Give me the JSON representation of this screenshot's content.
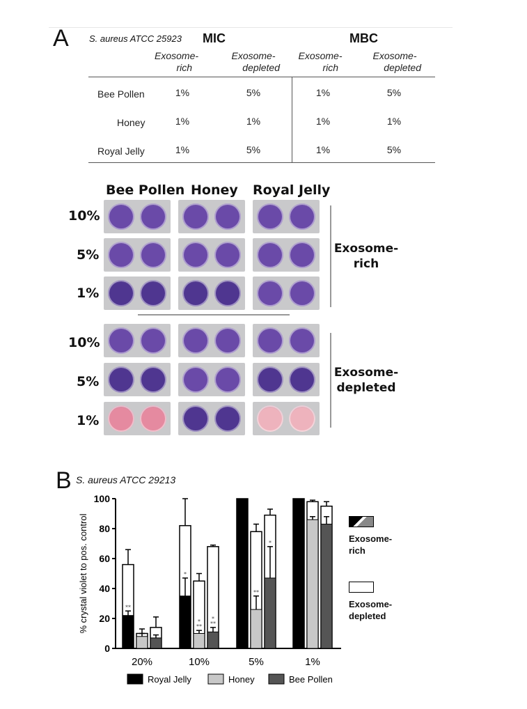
{
  "panel_a": {
    "letter": "A",
    "strain": "S. aureus ATCC 25923",
    "mic_label": "MIC",
    "mbc_label": "MBC",
    "col_headers": [
      {
        "line1": "Exosome-",
        "line2": "rich"
      },
      {
        "line1": "Exosome-",
        "line2": "depleted"
      },
      {
        "line1": "Exosome-",
        "line2": "rich"
      },
      {
        "line1": "Exosome-",
        "line2": "depleted"
      }
    ],
    "rows": [
      {
        "label": "Bee Pollen",
        "values": [
          "1%",
          "5%",
          "1%",
          "5%"
        ]
      },
      {
        "label": "Honey",
        "values": [
          "1%",
          "1%",
          "1%",
          "1%"
        ]
      },
      {
        "label": "Royal Jelly",
        "values": [
          "1%",
          "5%",
          "1%",
          "5%"
        ]
      }
    ],
    "plate_columns": [
      "Bee Pollen",
      "Honey",
      "Royal Jelly"
    ],
    "plate_rows": [
      "10%",
      "5%",
      "1%"
    ],
    "group_labels": [
      {
        "line1": "Exosome-",
        "line2": "rich"
      },
      {
        "line1": "Exosome-",
        "line2": "depleted"
      }
    ],
    "well_colors": {
      "purple": "#6a4aa8",
      "purple_dark": "#4f3690",
      "pink": "#e58aa0",
      "pink_light": "#eeb3bd"
    }
  },
  "panel_b": {
    "letter": "B",
    "strain": "S. aureus ATCC 29213",
    "chart_data": {
      "type": "bar",
      "ylabel": "% crystal violet  to pos. control",
      "ylim": [
        0,
        100
      ],
      "yticks": [
        "0",
        "20",
        "40",
        "60",
        "80",
        "100"
      ],
      "categories": [
        "20%",
        "10%",
        "5%",
        "1%"
      ],
      "series": [
        {
          "name": "Royal Jelly",
          "color": "#000000",
          "rich": [
            22,
            35,
            100,
            100
          ],
          "rich_err": [
            3,
            12,
            0,
            0
          ],
          "depleted": [
            56,
            82,
            100,
            100
          ],
          "depleted_err": [
            10,
            18,
            0,
            0
          ]
        },
        {
          "name": "Honey",
          "color": "#c8c8c8",
          "rich": [
            8,
            10,
            26,
            86
          ],
          "rich_err": [
            2,
            2,
            9,
            2
          ],
          "depleted": [
            10,
            45,
            78,
            98
          ],
          "depleted_err": [
            3,
            5,
            5,
            1
          ]
        },
        {
          "name": "Bee Pollen",
          "color": "#555555",
          "rich": [
            7,
            11,
            47,
            83
          ],
          "rich_err": [
            2,
            3,
            21,
            5
          ],
          "depleted": [
            14,
            68,
            89,
            95
          ],
          "depleted_err": [
            7,
            1,
            4,
            3
          ]
        }
      ],
      "significance": [
        {
          "category": "20%",
          "series": "Royal Jelly",
          "mark": "**"
        },
        {
          "category": "10%",
          "series": "Royal Jelly",
          "mark": "*"
        },
        {
          "category": "10%",
          "series": "Honey",
          "mark": "**"
        },
        {
          "category": "10%",
          "series": "Honey",
          "mark": "*"
        },
        {
          "category": "10%",
          "series": "Bee Pollen",
          "mark": "**"
        },
        {
          "category": "10%",
          "series": "Bee Pollen",
          "mark": "*"
        },
        {
          "category": "5%",
          "series": "Honey",
          "mark": "**"
        },
        {
          "category": "5%",
          "series": "Bee Pollen",
          "mark": "*"
        }
      ],
      "legend_side": [
        {
          "line1": "Exosome-",
          "line2": "rich"
        },
        {
          "line1": "Exosome-",
          "line2": "depleted"
        }
      ],
      "legend_bottom": [
        "Royal Jelly",
        "Honey",
        "Bee Pollen"
      ]
    }
  }
}
